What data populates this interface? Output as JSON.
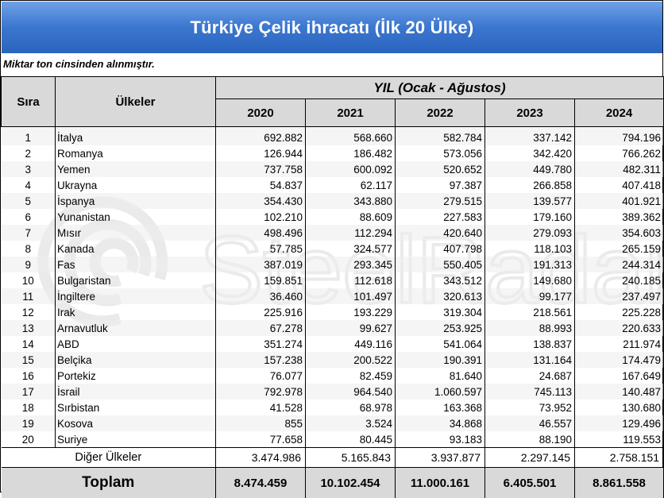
{
  "title": "Türkiye Çelik ihracatı (İlk 20 Ülke)",
  "note": "Miktar ton cinsinden alınmıştır.",
  "headers": {
    "rank": "Sıra",
    "country": "Ülkeler",
    "period": "YIL (Ocak - Ağustos)",
    "years": [
      "2020",
      "2021",
      "2022",
      "2023",
      "2024"
    ]
  },
  "rows": [
    {
      "rank": "1",
      "country": "İtalya",
      "values": [
        "692.882",
        "568.660",
        "582.784",
        "337.142",
        "794.196"
      ]
    },
    {
      "rank": "2",
      "country": "Romanya",
      "values": [
        "126.944",
        "186.482",
        "573.056",
        "342.420",
        "766.262"
      ]
    },
    {
      "rank": "3",
      "country": "Yemen",
      "values": [
        "737.758",
        "600.092",
        "520.652",
        "449.780",
        "482.311"
      ]
    },
    {
      "rank": "4",
      "country": "Ukrayna",
      "values": [
        "54.837",
        "62.117",
        "97.387",
        "266.858",
        "407.418"
      ]
    },
    {
      "rank": "5",
      "country": "İspanya",
      "values": [
        "354.430",
        "343.880",
        "279.515",
        "139.577",
        "401.921"
      ]
    },
    {
      "rank": "6",
      "country": "Yunanistan",
      "values": [
        "102.210",
        "88.609",
        "227.583",
        "179.160",
        "389.362"
      ]
    },
    {
      "rank": "7",
      "country": "Mısır",
      "values": [
        "498.496",
        "112.294",
        "420.640",
        "279.093",
        "354.603"
      ]
    },
    {
      "rank": "8",
      "country": "Kanada",
      "values": [
        "57.785",
        "324.577",
        "407.798",
        "118.103",
        "265.159"
      ]
    },
    {
      "rank": "9",
      "country": "Fas",
      "values": [
        "387.019",
        "293.345",
        "550.405",
        "191.313",
        "244.314"
      ]
    },
    {
      "rank": "10",
      "country": "Bulgaristan",
      "values": [
        "159.851",
        "112.618",
        "343.512",
        "149.680",
        "240.185"
      ]
    },
    {
      "rank": "11",
      "country": "İngiltere",
      "values": [
        "36.460",
        "101.497",
        "320.613",
        "99.177",
        "237.497"
      ]
    },
    {
      "rank": "12",
      "country": "Irak",
      "values": [
        "225.916",
        "193.229",
        "319.304",
        "218.561",
        "225.228"
      ]
    },
    {
      "rank": "13",
      "country": "Arnavutluk",
      "values": [
        "67.278",
        "99.627",
        "253.925",
        "88.993",
        "220.633"
      ]
    },
    {
      "rank": "14",
      "country": "ABD",
      "values": [
        "351.274",
        "449.116",
        "541.064",
        "138.837",
        "211.974"
      ]
    },
    {
      "rank": "15",
      "country": "Belçika",
      "values": [
        "157.238",
        "200.522",
        "190.391",
        "131.164",
        "174.479"
      ]
    },
    {
      "rank": "16",
      "country": "Portekiz",
      "values": [
        "76.077",
        "82.459",
        "81.640",
        "24.687",
        "167.649"
      ]
    },
    {
      "rank": "17",
      "country": "İsrail",
      "values": [
        "792.978",
        "964.540",
        "1.060.597",
        "745.113",
        "140.487"
      ]
    },
    {
      "rank": "18",
      "country": "Sırbistan",
      "values": [
        "41.528",
        "68.978",
        "163.368",
        "73.952",
        "130.680"
      ]
    },
    {
      "rank": "19",
      "country": "Kosova",
      "values": [
        "855",
        "3.524",
        "34.868",
        "46.557",
        "129.496"
      ]
    },
    {
      "rank": "20",
      "country": "Suriye",
      "values": [
        "77.658",
        "80.445",
        "93.183",
        "88.190",
        "119.553"
      ]
    }
  ],
  "other": {
    "label": "Diğer Ülkeler",
    "values": [
      "3.474.986",
      "5.165.843",
      "3.937.877",
      "2.297.145",
      "2.758.151"
    ]
  },
  "total": {
    "label": "Toplam",
    "values": [
      "8.474.459",
      "10.102.454",
      "11.000.161",
      "6.405.501",
      "8.861.558"
    ]
  },
  "watermark": "SteelRadar"
}
